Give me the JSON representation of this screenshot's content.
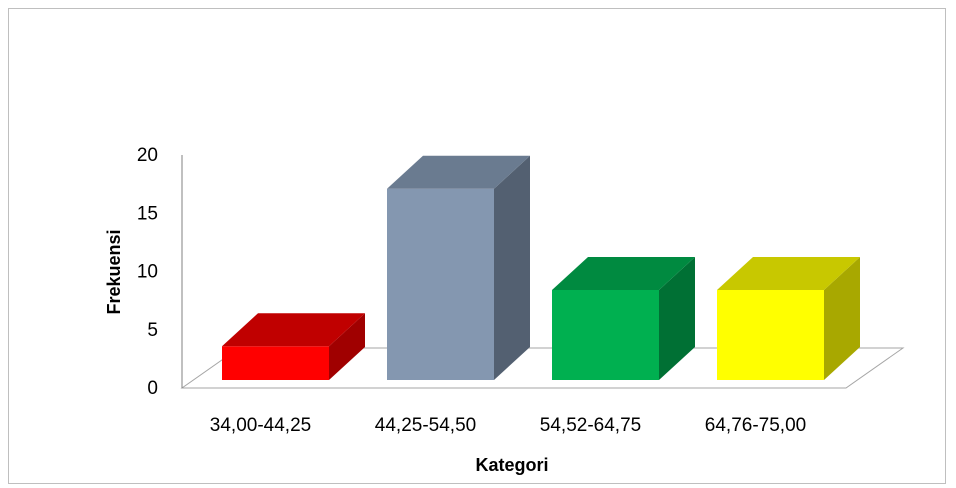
{
  "chart_data": {
    "type": "bar",
    "style": "3d-column",
    "categories": [
      "34,00-44,25",
      "44,25-54,50",
      "54,52-64,75",
      "64,76-75,00"
    ],
    "values": [
      3,
      17,
      8,
      8
    ],
    "colors": [
      "#ff0000",
      "#8497b0",
      "#00b050",
      "#ffff00"
    ],
    "side_colors": [
      "#a00000",
      "#536071",
      "#007034",
      "#a8a800"
    ],
    "top_colors": [
      "#c00000",
      "#6a7b90",
      "#008a40",
      "#c8c800"
    ],
    "xlabel": "Kategori",
    "ylabel": "Frekuensi",
    "y_ticks": [
      "0",
      "5",
      "10",
      "15",
      "20"
    ],
    "ylim": [
      0,
      20
    ],
    "grid": false,
    "legend": "none"
  }
}
